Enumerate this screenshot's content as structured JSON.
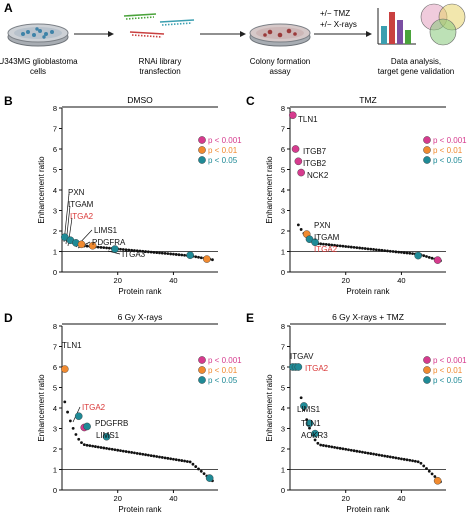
{
  "panel_a": {
    "letter": "A",
    "steps": [
      {
        "label_lines": [
          "U343MG glioblastoma",
          "cells"
        ]
      },
      {
        "label_lines": [
          "RNAi library",
          "transfection"
        ]
      },
      {
        "label_lines": [
          "Colony formation",
          "assay"
        ]
      },
      {
        "label_lines": [
          "Data analysis,",
          "target gene validation"
        ]
      }
    ],
    "treatment_lines": [
      "+/− TMZ",
      "+/− X-rays"
    ]
  },
  "legend": {
    "entries": [
      {
        "label": "p < 0.001",
        "color": "#d63b8e"
      },
      {
        "label": "p < 0.01",
        "color": "#f08a30"
      },
      {
        "label": "p < 0.05",
        "color": "#1f8a96"
      }
    ]
  },
  "colors": {
    "highlight_gene": "#d93636",
    "background_dot": "#111111"
  },
  "chart_data": [
    {
      "panel": "B",
      "type": "scatter",
      "title": "DMSO",
      "xlabel": "Protein rank",
      "ylabel": "Enhancement ratio",
      "xlim": [
        0,
        56
      ],
      "ylim": [
        0,
        8
      ],
      "xticks": [
        20,
        40
      ],
      "yticks": [
        0,
        1,
        2,
        3,
        4,
        5,
        6,
        7,
        8
      ],
      "reference_line_y": 1,
      "background_points": {
        "from_rank": 1,
        "to_rank": 54,
        "start": 1.7,
        "mid": 1.1,
        "end": 0.6
      },
      "significant_points": [
        {
          "x": 1,
          "y": 1.7,
          "level": "p < 0.05"
        },
        {
          "x": 3,
          "y": 1.55,
          "level": "p < 0.05"
        },
        {
          "x": 5,
          "y": 1.42,
          "level": "p < 0.05"
        },
        {
          "x": 7,
          "y": 1.35,
          "level": "p < 0.01"
        },
        {
          "x": 11,
          "y": 1.28,
          "level": "p < 0.01"
        },
        {
          "x": 19,
          "y": 1.12,
          "level": "p < 0.05"
        },
        {
          "x": 46,
          "y": 0.82,
          "level": "p < 0.05"
        },
        {
          "x": 52,
          "y": 0.63,
          "level": "p < 0.01"
        }
      ],
      "labels": [
        {
          "text": "PXN",
          "highlight": false
        },
        {
          "text": "ITGAM",
          "highlight": false
        },
        {
          "text": "ITGA2",
          "highlight": true
        },
        {
          "text": "LIMS1",
          "highlight": false
        },
        {
          "text": "PDGFRA",
          "highlight": false
        },
        {
          "text": "ITGA3",
          "highlight": false
        }
      ]
    },
    {
      "panel": "C",
      "type": "scatter",
      "title": "TMZ",
      "xlabel": "Protein rank",
      "ylabel": "Enhancement ratio",
      "xlim": [
        0,
        56
      ],
      "ylim": [
        0,
        8
      ],
      "xticks": [
        20,
        40
      ],
      "yticks": [
        0,
        1,
        2,
        3,
        4,
        5,
        6,
        7,
        8
      ],
      "reference_line_y": 1,
      "background_points": {
        "from_rank": 3,
        "to_rank": 54,
        "start": 2.3,
        "mid": 1.2,
        "end": 0.55
      },
      "significant_points": [
        {
          "x": 1,
          "y": 7.65,
          "level": "p < 0.001"
        },
        {
          "x": 2,
          "y": 6.0,
          "level": "p < 0.001"
        },
        {
          "x": 3,
          "y": 5.4,
          "level": "p < 0.001"
        },
        {
          "x": 4,
          "y": 4.85,
          "level": "p < 0.001"
        },
        {
          "x": 6,
          "y": 1.85,
          "level": "p < 0.01"
        },
        {
          "x": 7,
          "y": 1.6,
          "level": "p < 0.05"
        },
        {
          "x": 9,
          "y": 1.45,
          "level": "p < 0.05"
        },
        {
          "x": 46,
          "y": 0.8,
          "level": "p < 0.05"
        },
        {
          "x": 53,
          "y": 0.58,
          "level": "p < 0.001"
        }
      ],
      "labels": [
        {
          "text": "TLN1",
          "highlight": false
        },
        {
          "text": "ITGB7",
          "highlight": false
        },
        {
          "text": "ITGB2",
          "highlight": false
        },
        {
          "text": "NCK2",
          "highlight": false
        },
        {
          "text": "PXN",
          "highlight": false
        },
        {
          "text": "ITGAM",
          "highlight": false
        },
        {
          "text": "ITGA2",
          "highlight": true
        }
      ]
    },
    {
      "panel": "D",
      "type": "scatter",
      "title": "6 Gy X-rays",
      "xlabel": "Protein rank",
      "ylabel": "Enhancement ratio",
      "xlim": [
        0,
        56
      ],
      "ylim": [
        0,
        8
      ],
      "xticks": [
        20,
        40
      ],
      "yticks": [
        0,
        1,
        2,
        3,
        4,
        5,
        6,
        7,
        8
      ],
      "reference_line_y": 1,
      "background_points": {
        "from_rank": 1,
        "to_rank": 54,
        "start": 4.3,
        "mid": 1.9,
        "end": 0.45
      },
      "significant_points": [
        {
          "x": 1,
          "y": 5.9,
          "level": "p < 0.01"
        },
        {
          "x": 6,
          "y": 3.6,
          "level": "p < 0.05"
        },
        {
          "x": 8,
          "y": 3.05,
          "level": "p < 0.001"
        },
        {
          "x": 9,
          "y": 3.1,
          "level": "p < 0.05"
        },
        {
          "x": 16,
          "y": 2.6,
          "level": "p < 0.05"
        },
        {
          "x": 53,
          "y": 0.58,
          "level": "p < 0.05"
        }
      ],
      "labels": [
        {
          "text": "TLN1",
          "highlight": false
        },
        {
          "text": "ITGA2",
          "highlight": true
        },
        {
          "text": "PDGFRB",
          "highlight": false
        },
        {
          "text": "LIMS1",
          "highlight": false
        }
      ]
    },
    {
      "panel": "E",
      "type": "scatter",
      "title": "6 Gy X-rays + TMZ",
      "xlabel": "Protein rank",
      "ylabel": "Enhancement ratio",
      "xlim": [
        0,
        56
      ],
      "ylim": [
        0,
        8
      ],
      "xticks": [
        20,
        40
      ],
      "yticks": [
        0,
        1,
        2,
        3,
        4,
        5,
        6,
        7,
        8
      ],
      "reference_line_y": 1,
      "background_points": {
        "from_rank": 4,
        "to_rank": 54,
        "start": 4.5,
        "mid": 1.9,
        "end": 0.4
      },
      "significant_points": [
        {
          "x": 1,
          "y": 6.0,
          "level": "p < 0.05"
        },
        {
          "x": 2,
          "y": 6.0,
          "level": "p < 0.05"
        },
        {
          "x": 3,
          "y": 6.0,
          "level": "p < 0.05"
        },
        {
          "x": 5,
          "y": 4.1,
          "level": "p < 0.05"
        },
        {
          "x": 7,
          "y": 3.25,
          "level": "p < 0.05"
        },
        {
          "x": 9,
          "y": 2.75,
          "level": "p < 0.05"
        },
        {
          "x": 53,
          "y": 0.45,
          "level": "p < 0.01"
        }
      ],
      "labels": [
        {
          "text": "ITGAV",
          "highlight": false
        },
        {
          "text": "ITGA2",
          "highlight": true
        },
        {
          "text": "LIMS1",
          "highlight": false
        },
        {
          "text": "TLN1",
          "highlight": false
        },
        {
          "text": "ACKR3",
          "highlight": false
        }
      ]
    }
  ]
}
